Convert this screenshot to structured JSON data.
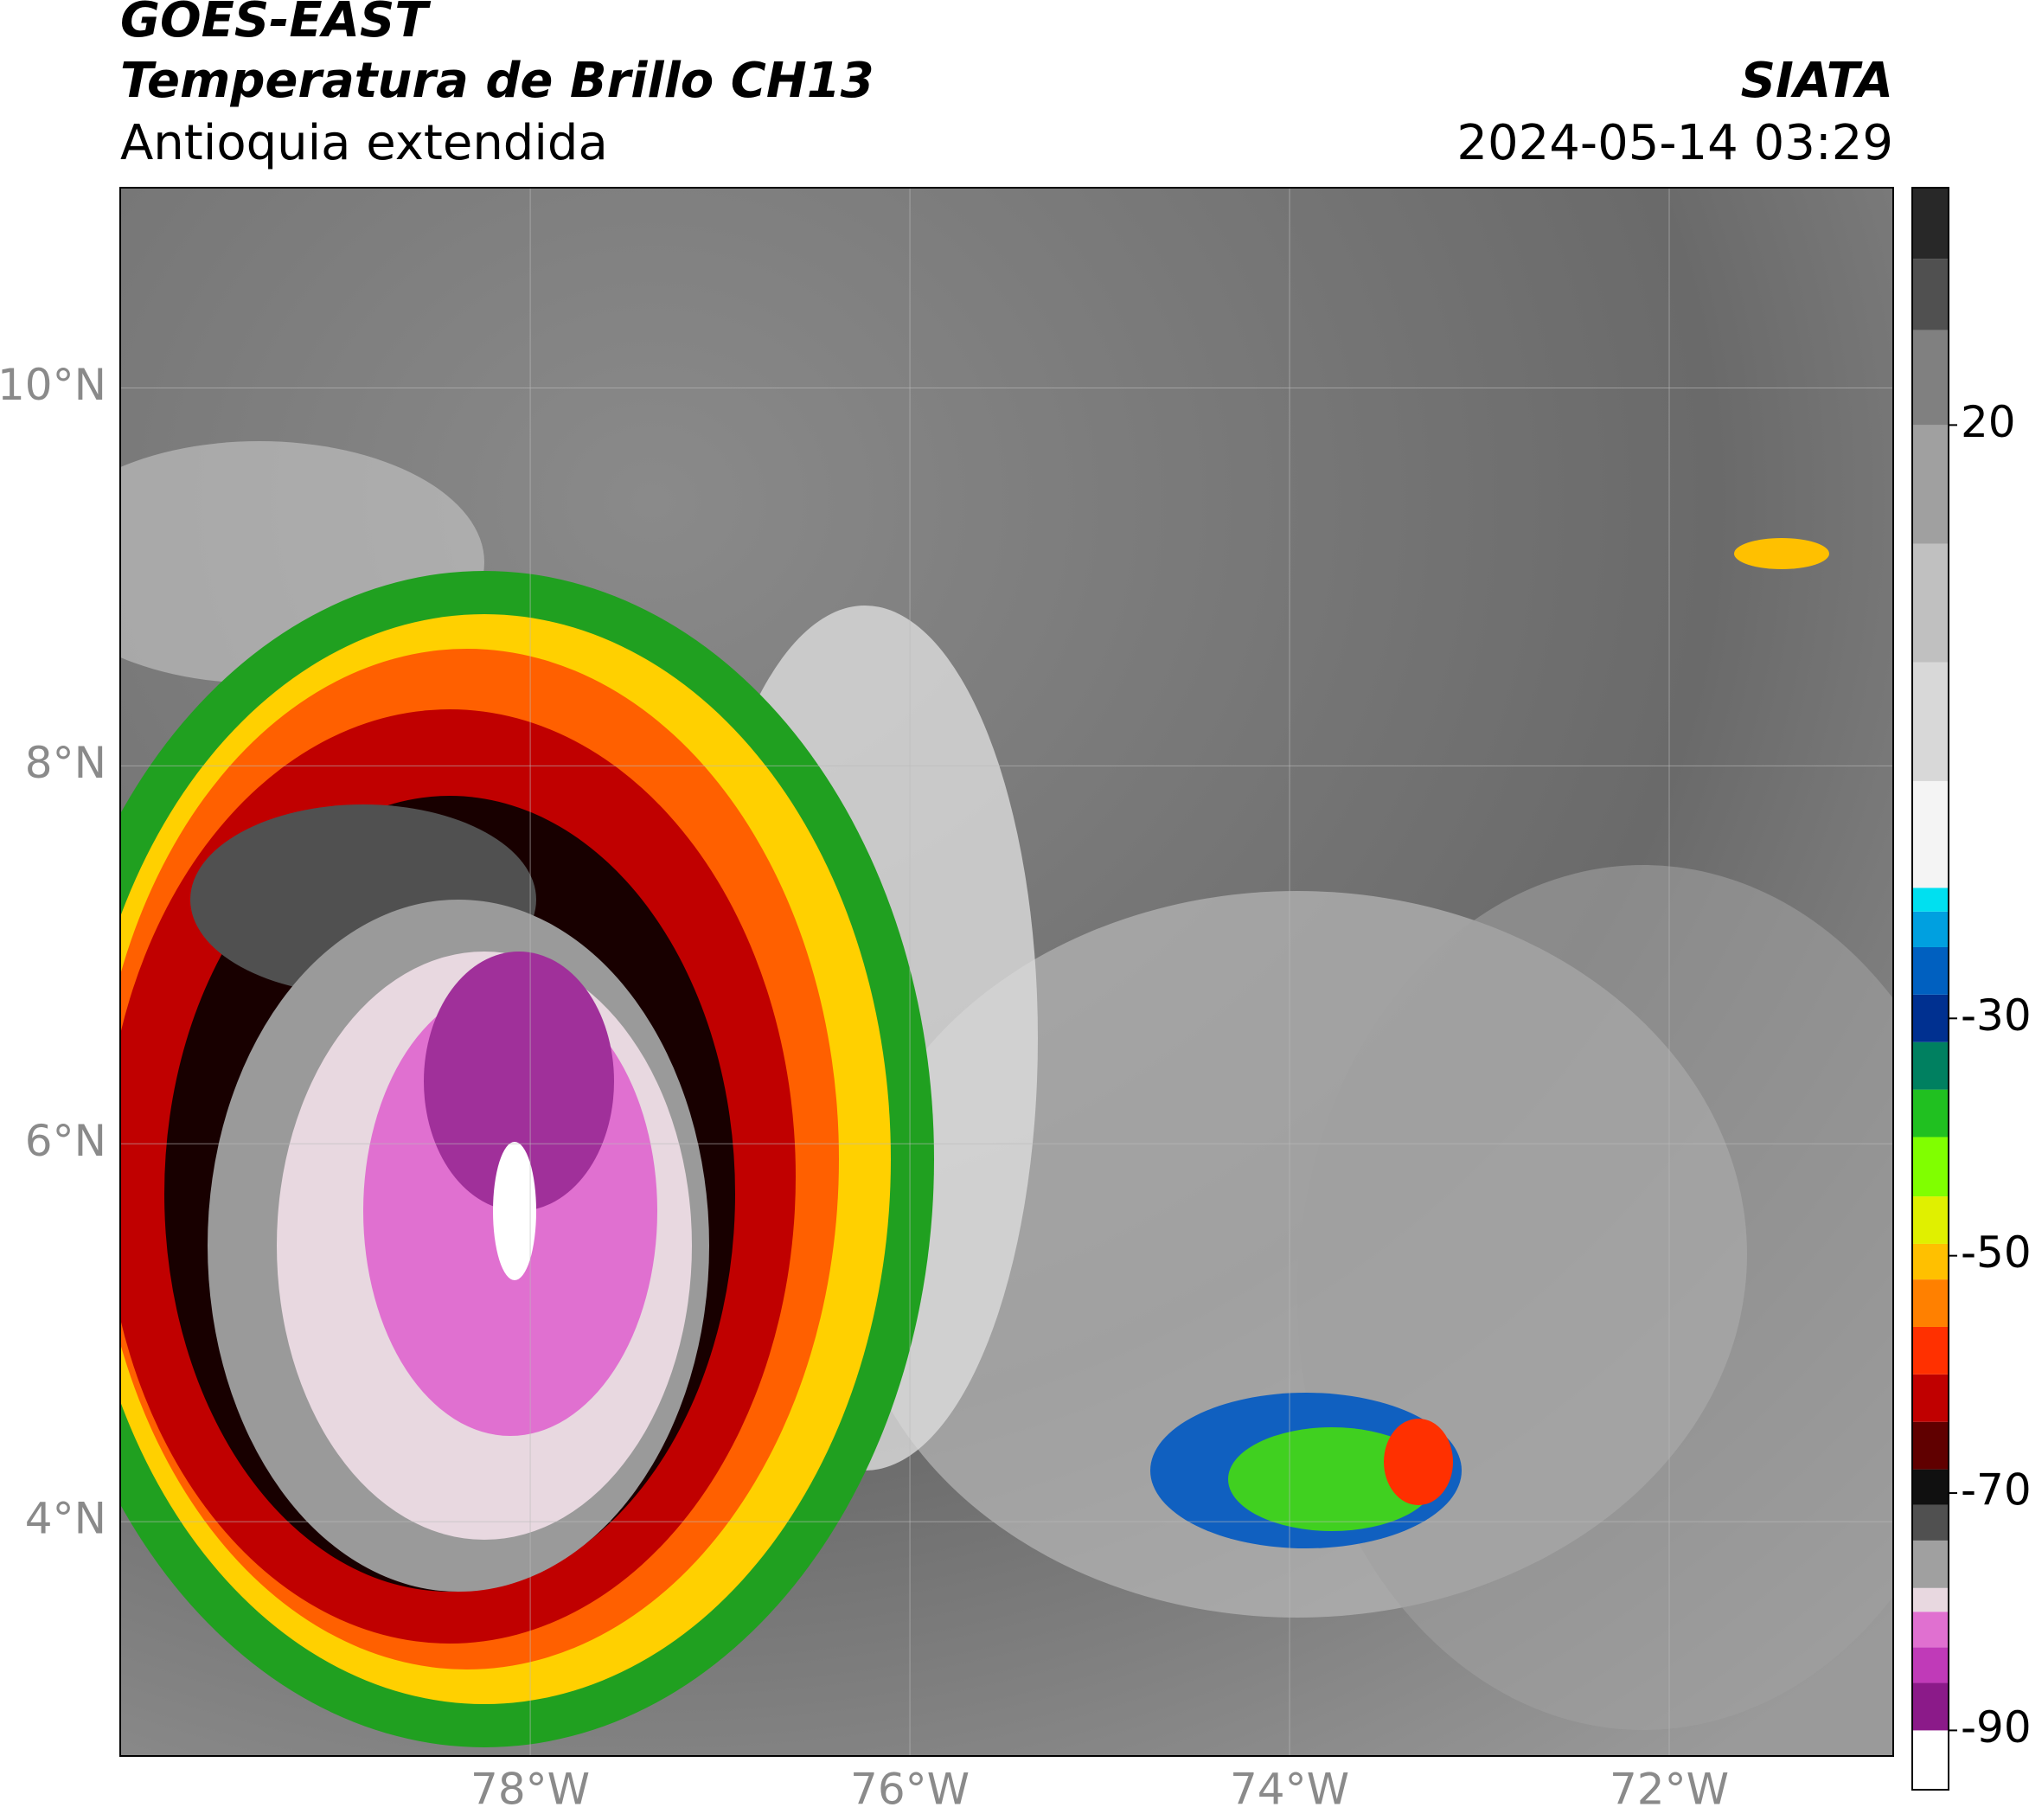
{
  "header": {
    "title": "GOES-EAST",
    "subtitle": "Temperatura de Brillo CH13",
    "region": "Antioquia extendida",
    "source": "SIATA",
    "datetime": "2024-05-14 03:29"
  },
  "map": {
    "xlim": [
      -80.16,
      -70.82
    ],
    "ylim": [
      2.76,
      11.06
    ],
    "xticks": [
      {
        "value": -78,
        "label": "78°W"
      },
      {
        "value": -76,
        "label": "76°W"
      },
      {
        "value": -74,
        "label": "74°W"
      },
      {
        "value": -72,
        "label": "72°W"
      }
    ],
    "yticks": [
      {
        "value": 4,
        "label": "4°N"
      },
      {
        "value": 6,
        "label": "6°N"
      },
      {
        "value": 8,
        "label": "8°N"
      },
      {
        "value": 10,
        "label": "10°N"
      }
    ],
    "grid": true
  },
  "colorbar": {
    "clim": [
      -95,
      40
    ],
    "ticks": [
      -90,
      -70,
      -50,
      -30,
      20
    ],
    "stops": [
      {
        "value": -95,
        "color": "#ffffff"
      },
      {
        "value": -90,
        "color": "#8b1a89"
      },
      {
        "value": -86,
        "color": "#c03ab8"
      },
      {
        "value": -83,
        "color": "#e070d0"
      },
      {
        "value": -80,
        "color": "#e8d8e0"
      },
      {
        "value": -78,
        "color": "#a0a0a0"
      },
      {
        "value": -74,
        "color": "#505050"
      },
      {
        "value": -71,
        "color": "#101010"
      },
      {
        "value": -68,
        "color": "#600000"
      },
      {
        "value": -64,
        "color": "#c00000"
      },
      {
        "value": -60,
        "color": "#ff3000"
      },
      {
        "value": -56,
        "color": "#ff8000"
      },
      {
        "value": -52,
        "color": "#ffc000"
      },
      {
        "value": -49,
        "color": "#e0f000"
      },
      {
        "value": -45,
        "color": "#80ff00"
      },
      {
        "value": -40,
        "color": "#20c020"
      },
      {
        "value": -36,
        "color": "#008060"
      },
      {
        "value": -32,
        "color": "#003090"
      },
      {
        "value": -28,
        "color": "#0060c0"
      },
      {
        "value": -24,
        "color": "#00a0e0"
      },
      {
        "value": -21,
        "color": "#00e0f0"
      },
      {
        "value": -19,
        "color": "#f4f4f4"
      },
      {
        "value": -10,
        "color": "#d8d8d8"
      },
      {
        "value": 0,
        "color": "#c0c0c0"
      },
      {
        "value": 10,
        "color": "#a0a0a0"
      },
      {
        "value": 20,
        "color": "#808080"
      },
      {
        "value": 28,
        "color": "#505050"
      },
      {
        "value": 34,
        "color": "#282828"
      }
    ]
  }
}
